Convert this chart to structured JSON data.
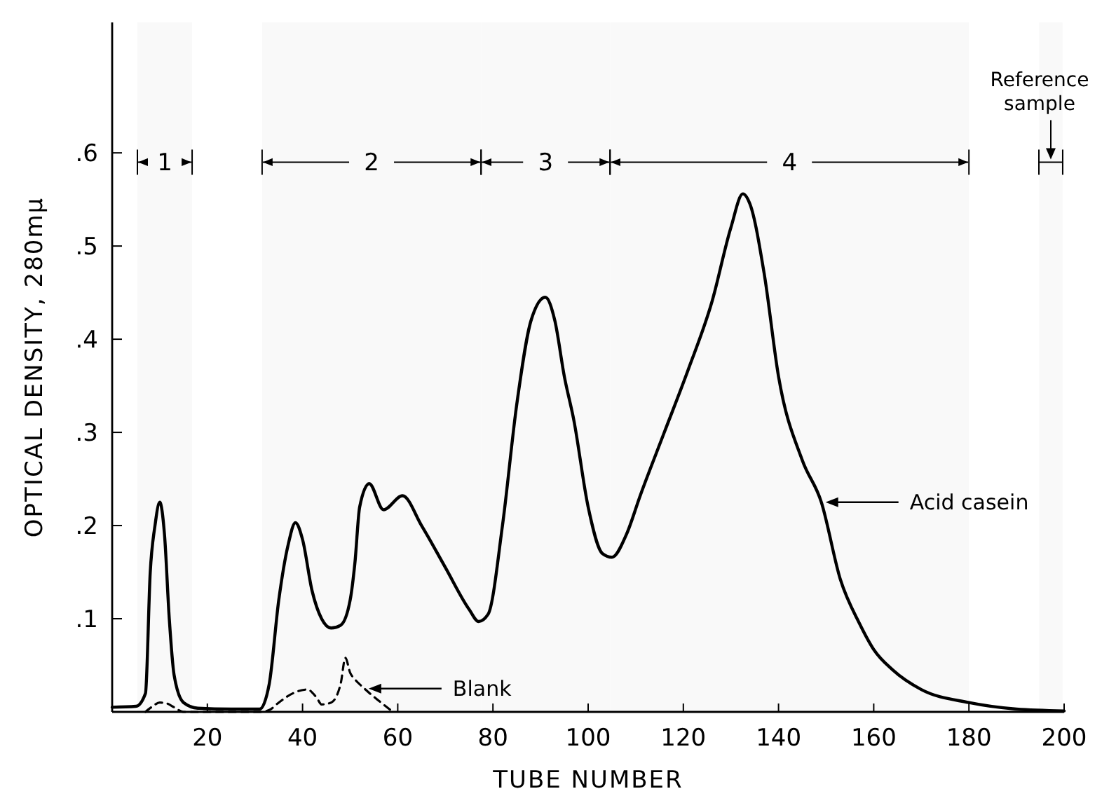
{
  "chart_data": {
    "type": "line",
    "xlabel": "TUBE NUMBER",
    "ylabel": "OPTICAL DENSITY, 280mμ",
    "xlim": [
      0,
      200
    ],
    "ylim": [
      0,
      0.74
    ],
    "xticks": [
      20,
      40,
      60,
      80,
      100,
      120,
      140,
      160,
      180,
      200
    ],
    "yticks": [
      {
        "value": 0.1,
        "label": ".1"
      },
      {
        "value": 0.2,
        "label": ".2"
      },
      {
        "value": 0.3,
        "label": ".3"
      },
      {
        "value": 0.4,
        "label": ".4"
      },
      {
        "value": 0.5,
        "label": ".5"
      },
      {
        "value": 0.6,
        "label": ".6"
      }
    ],
    "grid": false,
    "series": [
      {
        "color": "#000000",
        "line_style": "solid",
        "x": [
          0,
          5,
          7,
          8,
          9,
          10,
          11,
          12,
          13,
          15,
          18,
          25,
          31,
          33,
          35,
          37,
          38.5,
          40,
          42,
          44,
          46,
          48,
          50,
          51,
          52,
          54,
          57,
          61,
          65,
          70,
          75,
          77,
          79,
          82,
          85,
          88,
          91,
          93,
          95,
          97,
          100,
          103,
          105,
          108,
          111,
          116,
          121,
          126,
          130,
          132.5,
          134,
          137,
          140,
          145,
          149,
          153,
          157,
          160,
          164,
          170,
          180,
          190,
          200
        ],
        "values": [
          0.005,
          0.006,
          0.02,
          0.15,
          0.2,
          0.225,
          0.19,
          0.1,
          0.04,
          0.01,
          0.004,
          0.003,
          0.003,
          0.03,
          0.12,
          0.18,
          0.203,
          0.185,
          0.13,
          0.1,
          0.09,
          0.093,
          0.12,
          0.16,
          0.22,
          0.245,
          0.217,
          0.232,
          0.2,
          0.155,
          0.11,
          0.097,
          0.105,
          0.2,
          0.33,
          0.42,
          0.445,
          0.42,
          0.36,
          0.313,
          0.22,
          0.17,
          0.166,
          0.19,
          0.233,
          0.3,
          0.367,
          0.44,
          0.52,
          0.556,
          0.545,
          0.47,
          0.36,
          0.27,
          0.225,
          0.142,
          0.095,
          0.067,
          0.045,
          0.024,
          0.01,
          0.003,
          0.001
        ]
      },
      {
        "color": "#000000",
        "line_style": "dashed",
        "x": [
          7,
          8.5,
          10,
          11.5,
          13,
          15,
          31,
          33,
          35,
          38,
          41,
          43,
          44,
          46,
          48,
          49,
          50,
          51,
          53,
          56,
          59
        ],
        "values": [
          0,
          0.006,
          0.01,
          0.009,
          0.005,
          0,
          0,
          0.002,
          0.01,
          0.02,
          0.024,
          0.015,
          0.008,
          0.01,
          0.03,
          0.058,
          0.042,
          0.035,
          0.025,
          0.012,
          0
        ]
      }
    ],
    "bands": [
      {
        "axis": "x",
        "from": 5.3,
        "to": 16.8,
        "label": "1"
      },
      {
        "axis": "x",
        "from": 31.5,
        "to": 77.5,
        "label": "2"
      },
      {
        "axis": "x",
        "from": 77.5,
        "to": 104.6,
        "label": "3"
      },
      {
        "axis": "x",
        "from": 104.6,
        "to": 180,
        "label": "4"
      },
      {
        "axis": "x",
        "from": 194.7,
        "to": 199.7,
        "label": "Reference sample"
      }
    ],
    "annotations": [
      "Acid casein",
      "Blank"
    ]
  }
}
